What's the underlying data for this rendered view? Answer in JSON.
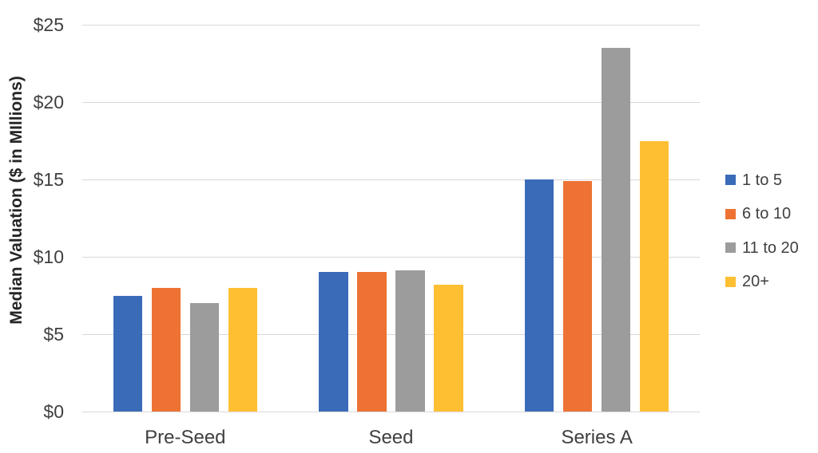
{
  "chart_data": {
    "type": "bar",
    "title": "",
    "ylabel": "Median Valuation ($ in MIllions)",
    "xlabel": "",
    "categories": [
      "Pre-Seed",
      "Seed",
      "Series A"
    ],
    "series": [
      {
        "name": "1 to 5",
        "color": "#3a6bb9",
        "values": [
          7.5,
          9.0,
          15.0
        ]
      },
      {
        "name": "6 to 10",
        "color": "#ed7233",
        "values": [
          8.0,
          9.0,
          14.9
        ]
      },
      {
        "name": "11 to 20",
        "color": "#9c9c9c",
        "values": [
          7.0,
          9.1,
          23.5
        ]
      },
      {
        "name": "20+",
        "color": "#ffbf33",
        "values": [
          8.0,
          8.2,
          17.5
        ]
      }
    ],
    "ylim": [
      0,
      25
    ],
    "ytick_step": 5,
    "ytick_labels": [
      "$0",
      "$5",
      "$10",
      "$15",
      "$20",
      "$25"
    ],
    "grid": true,
    "legend_position": "right",
    "gridline_color": "#d8d8d8",
    "tick_label_color": "#404040",
    "axis_title_color": "#262626"
  }
}
